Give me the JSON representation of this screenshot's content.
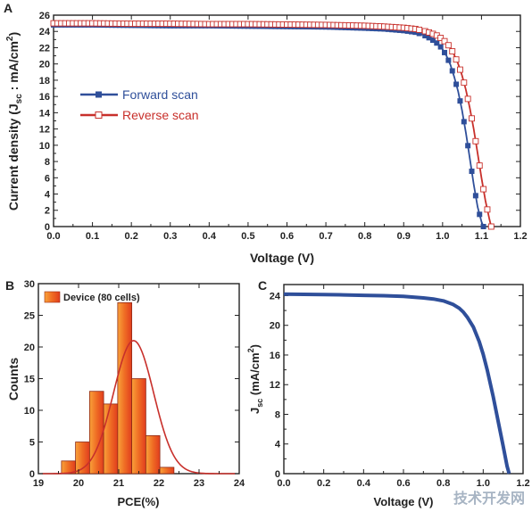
{
  "chart_data": [
    {
      "panel_label": "A",
      "type": "line",
      "xlabel": "Voltage (V)",
      "ylabel_parts": [
        "Current density (J",
        "sc",
        " : mA/cm",
        "2",
        ")"
      ],
      "xlim": [
        0.0,
        1.2
      ],
      "ylim": [
        0,
        26
      ],
      "x_ticks": [
        0.0,
        0.1,
        0.2,
        0.3,
        0.4,
        0.5,
        0.6,
        0.7,
        0.8,
        0.9,
        1.0,
        1.1,
        1.2
      ],
      "y_ticks": [
        0,
        2,
        4,
        6,
        8,
        10,
        12,
        14,
        16,
        18,
        20,
        22,
        24,
        26
      ],
      "legend_position": "center-left",
      "series": [
        {
          "name": "Forward scan",
          "color": "#2f4f9a",
          "marker": "filled-square",
          "x": [
            0.0,
            0.1,
            0.2,
            0.3,
            0.4,
            0.5,
            0.6,
            0.7,
            0.8,
            0.85,
            0.9,
            0.93,
            0.95,
            0.97,
            0.99,
            1.0,
            1.01,
            1.02,
            1.03,
            1.04,
            1.05,
            1.06,
            1.07,
            1.08,
            1.09,
            1.1,
            1.105
          ],
          "y": [
            24.8,
            24.8,
            24.75,
            24.7,
            24.7,
            24.65,
            24.6,
            24.55,
            24.4,
            24.3,
            24.1,
            23.9,
            23.6,
            23.1,
            22.4,
            21.8,
            21.0,
            19.9,
            18.4,
            16.6,
            14.3,
            11.5,
            8.4,
            5.2,
            2.4,
            0.6,
            0
          ]
        },
        {
          "name": "Reverse scan",
          "color": "#c8302b",
          "marker": "open-square",
          "x": [
            0.0,
            0.1,
            0.2,
            0.3,
            0.4,
            0.5,
            0.6,
            0.7,
            0.8,
            0.85,
            0.9,
            0.93,
            0.95,
            0.97,
            0.99,
            1.01,
            1.02,
            1.03,
            1.04,
            1.05,
            1.06,
            1.07,
            1.08,
            1.09,
            1.1,
            1.11,
            1.12,
            1.125
          ],
          "y": [
            25.0,
            25.0,
            24.95,
            24.95,
            24.9,
            24.9,
            24.85,
            24.8,
            24.7,
            24.6,
            24.45,
            24.3,
            24.1,
            23.8,
            23.4,
            22.6,
            22.0,
            21.1,
            20.0,
            18.6,
            16.8,
            14.6,
            12.0,
            9.0,
            6.0,
            3.2,
            1.0,
            0
          ]
        }
      ]
    },
    {
      "panel_label": "B",
      "type": "bar",
      "xlabel": "PCE(%)",
      "ylabel": "Counts",
      "xlim": [
        19,
        24
      ],
      "ylim": [
        0,
        30
      ],
      "x_ticks": [
        19,
        20,
        21,
        22,
        23,
        24
      ],
      "y_ticks": [
        0,
        5,
        10,
        15,
        20,
        25,
        30
      ],
      "legend_position": "top-left",
      "legend_label": "Device (80 cells)",
      "bin_width": 0.35,
      "bin_centers": [
        19.75,
        20.1,
        20.45,
        20.8,
        21.15,
        21.5,
        21.85,
        22.2,
        22.55
      ],
      "values": [
        2,
        5,
        13,
        11,
        27,
        15,
        6,
        1,
        0
      ],
      "fit": {
        "type": "gaussian",
        "mean": 21.37,
        "sigma": 0.5,
        "amplitude": 21,
        "color": "#c8302b"
      },
      "bar_color": "#ef6c24"
    },
    {
      "panel_label": "C",
      "type": "line",
      "xlabel": "Voltage (V)",
      "ylabel_parts": [
        "J",
        "sc",
        " (mA/cm",
        "2",
        ")"
      ],
      "xlim": [
        0.0,
        1.2
      ],
      "ylim": [
        0,
        25.5
      ],
      "x_ticks": [
        0.0,
        0.2,
        0.4,
        0.6,
        0.8,
        1.0,
        1.2
      ],
      "y_ticks": [
        0,
        4,
        8,
        12,
        16,
        20,
        24
      ],
      "series": [
        {
          "color": "#2f4f9a",
          "x": [
            0.0,
            0.1,
            0.2,
            0.3,
            0.4,
            0.5,
            0.6,
            0.7,
            0.75,
            0.8,
            0.85,
            0.88,
            0.9,
            0.92,
            0.95,
            0.98,
            1.0,
            1.02,
            1.05,
            1.08,
            1.1,
            1.12,
            1.13
          ],
          "y": [
            24.2,
            24.18,
            24.15,
            24.1,
            24.05,
            24.0,
            23.9,
            23.7,
            23.55,
            23.3,
            22.8,
            22.3,
            21.8,
            21.1,
            19.8,
            17.8,
            16.1,
            14.0,
            10.4,
            6.4,
            3.7,
            1.0,
            0
          ]
        }
      ]
    }
  ],
  "watermark": "技术开发网"
}
